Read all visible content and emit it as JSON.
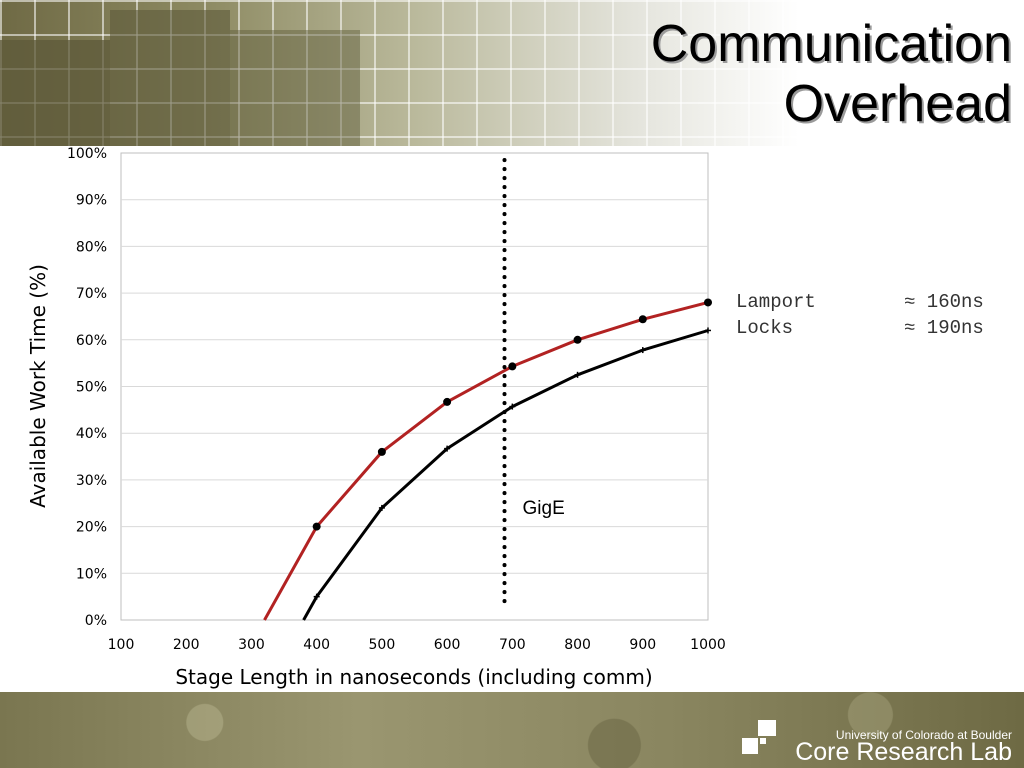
{
  "slide": {
    "title_line1": "Communication",
    "title_line2": "Overhead",
    "footer_univ": "University of Colorado at Boulder",
    "footer_lab": "Core Research Lab"
  },
  "legend": [
    {
      "name": "Lamport",
      "value": "≈ 160ns"
    },
    {
      "name": "Locks",
      "value": "≈ 190ns"
    }
  ],
  "colors": {
    "red_series": "#b22222",
    "black_series": "#000000",
    "grid": "#d9d9d9"
  },
  "chart_data": {
    "type": "line",
    "xlabel": "Stage Length in nanoseconds (including comm)",
    "ylabel": "Available Work Time (%)",
    "xlim": [
      100,
      1000
    ],
    "ylim": [
      0,
      100
    ],
    "xticks": [
      100,
      200,
      300,
      400,
      500,
      600,
      700,
      800,
      900,
      1000
    ],
    "yticks": [
      "0%",
      "10%",
      "20%",
      "30%",
      "40%",
      "50%",
      "60%",
      "70%",
      "80%",
      "90%",
      "100%"
    ],
    "grid": true,
    "series": [
      {
        "color": "#b22222",
        "marker": "dot",
        "x": [
          320,
          400,
          500,
          600,
          700,
          800,
          900,
          1000
        ],
        "y": [
          0,
          20,
          36,
          46.7,
          54.3,
          60,
          64.4,
          68
        ]
      },
      {
        "color": "#000000",
        "marker": "tick",
        "x": [
          380,
          400,
          500,
          600,
          700,
          800,
          900,
          1000
        ],
        "y": [
          0,
          5,
          24,
          36.7,
          45.7,
          52.5,
          57.8,
          62
        ]
      }
    ],
    "vline": {
      "x": 688,
      "label": "GigE",
      "style": "dotted"
    }
  }
}
